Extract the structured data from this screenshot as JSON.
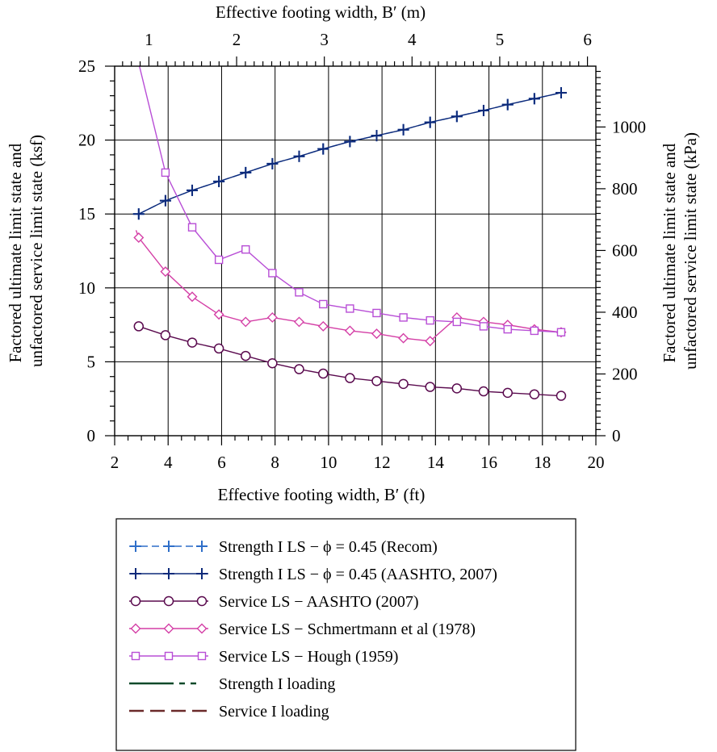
{
  "chart_data": {
    "type": "line",
    "xlabel": "Effective footing width, B′ (ft)",
    "xlabel_top": "Effective footing width, B′ (m)",
    "ylabel": [
      "Factored ultimate limit state and",
      "unfactored service limit state (ksf)"
    ],
    "ylabel_right": [
      "Factored ultimate limit state and",
      "unfactored service limit state (kPa)"
    ],
    "xlim": [
      2,
      20
    ],
    "ylim": [
      0,
      25
    ],
    "xlim_top": [
      0.6096,
      6.096
    ],
    "ylim_right": [
      0,
      1197
    ],
    "xticks": [
      2,
      4,
      6,
      8,
      10,
      12,
      14,
      16,
      18,
      20
    ],
    "yticks": [
      0,
      5,
      10,
      15,
      20,
      25
    ],
    "xticks_top": [
      1,
      2,
      3,
      4,
      5,
      6
    ],
    "yticks_right": [
      0,
      200,
      400,
      600,
      800,
      1000
    ],
    "grid": true,
    "legend_position": "below",
    "series": [
      {
        "name": "Strength I LS − ϕ = 0.45 (Recom)",
        "color": "#2f6fc9",
        "line": "dashed",
        "marker": "plus",
        "x": [
          2.9,
          3.9,
          4.9,
          5.9,
          6.9,
          7.9,
          8.9,
          9.8,
          10.8,
          11.8,
          12.8,
          13.8,
          14.8,
          15.8,
          16.7,
          17.7,
          18.7
        ],
        "y": [
          15.0,
          15.9,
          16.6,
          17.2,
          17.8,
          18.4,
          18.9,
          19.4,
          19.9,
          20.3,
          20.7,
          21.2,
          21.6,
          22.0,
          22.4,
          22.8,
          23.2
        ]
      },
      {
        "name": "Strength I LS − ϕ = 0.45 (AASHTO, 2007)",
        "color": "#0d2a7a",
        "line": "solid",
        "marker": "plus",
        "x": [
          2.9,
          3.9,
          4.9,
          5.9,
          6.9,
          7.9,
          8.9,
          9.8,
          10.8,
          11.8,
          12.8,
          13.8,
          14.8,
          15.8,
          16.7,
          17.7,
          18.7
        ],
        "y": [
          15.0,
          15.9,
          16.6,
          17.2,
          17.8,
          18.4,
          18.9,
          19.4,
          19.9,
          20.3,
          20.7,
          21.2,
          21.6,
          22.0,
          22.4,
          22.8,
          23.2
        ]
      },
      {
        "name": "Service LS − AASHTO (2007)",
        "color": "#5a0a4e",
        "line": "solid",
        "marker": "circle",
        "x": [
          2.9,
          3.9,
          4.9,
          5.9,
          6.9,
          7.9,
          8.9,
          9.8,
          10.8,
          11.8,
          12.8,
          13.8,
          14.8,
          15.8,
          16.7,
          17.7,
          18.7
        ],
        "y": [
          7.4,
          6.8,
          6.3,
          5.9,
          5.4,
          4.9,
          4.5,
          4.2,
          3.9,
          3.7,
          3.5,
          3.3,
          3.2,
          3.0,
          2.9,
          2.8,
          2.7
        ]
      },
      {
        "name": "Service LS − Schmertmann et al (1978)",
        "color": "#d43fa6",
        "line": "solid",
        "marker": "diamond",
        "x": [
          2.8,
          2.9,
          3.9,
          4.9,
          5.9,
          6.9,
          7.9,
          8.9,
          9.8,
          10.8,
          11.8,
          12.8,
          13.8,
          14.8,
          15.8,
          16.7,
          17.7,
          18.7
        ],
        "y": [
          13.9,
          13.4,
          11.1,
          9.4,
          8.2,
          7.7,
          8.0,
          7.7,
          7.4,
          7.1,
          6.9,
          6.6,
          6.4,
          8.0,
          7.7,
          7.5,
          7.2,
          7.0
        ],
        "markers_from": 1
      },
      {
        "name": "Service LS − Hough (1959)",
        "color": "#b84ed6",
        "line": "solid",
        "marker": "square",
        "x": [
          2.9,
          3.9,
          4.9,
          5.9,
          6.9,
          7.9,
          8.9,
          9.8,
          10.8,
          11.8,
          12.8,
          13.8,
          14.8,
          15.8,
          16.7,
          17.7,
          18.7
        ],
        "y": [
          25.2,
          17.8,
          14.1,
          11.9,
          12.6,
          11.0,
          9.7,
          8.9,
          8.6,
          8.3,
          8.0,
          7.8,
          7.7,
          7.4,
          7.2,
          7.1,
          7.0
        ],
        "markers_from": 1
      }
    ],
    "legend": [
      {
        "label": "Strength I LS − ϕ = 0.45 (Recom)",
        "color": "#2f6fc9",
        "line": "dashed",
        "marker": "plus"
      },
      {
        "label": "Strength I LS − ϕ = 0.45 (AASHTO, 2007)",
        "color": "#0d2a7a",
        "line": "solid",
        "marker": "plus"
      },
      {
        "label": "Service LS − AASHTO (2007)",
        "color": "#5a0a4e",
        "line": "solid",
        "marker": "circle"
      },
      {
        "label": "Service LS − Schmertmann et al (1978)",
        "color": "#d43fa6",
        "line": "solid",
        "marker": "diamond"
      },
      {
        "label": "Service LS − Hough (1959)",
        "color": "#b84ed6",
        "line": "solid",
        "marker": "square"
      },
      {
        "label": "Strength I loading",
        "color": "#0b4a2a",
        "line": "dashdot",
        "marker": "none"
      },
      {
        "label": "Service I loading",
        "color": "#6b2a2a",
        "line": "dashed",
        "marker": "none"
      }
    ]
  }
}
